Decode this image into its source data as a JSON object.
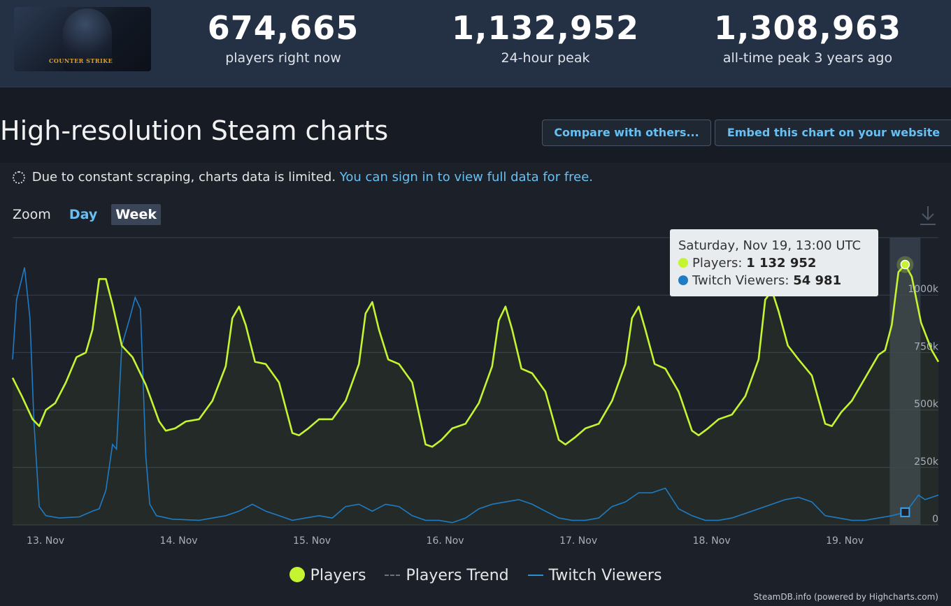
{
  "header": {
    "game_logo_text": "COUNTER STRIKE",
    "stats": [
      {
        "value": "674,665",
        "label": "players right now"
      },
      {
        "value": "1,132,952",
        "label": "24-hour peak"
      },
      {
        "value": "1,308,963",
        "label": "all-time peak 3 years ago"
      }
    ]
  },
  "section": {
    "title": "High-resolution Steam charts",
    "compare_button": "Compare with others...",
    "embed_button": "Embed this chart on your website",
    "notice_text": "Due to constant scraping, charts data is limited.",
    "notice_link": "You can sign in to view full data for free."
  },
  "zoom": {
    "label": "Zoom",
    "options": [
      "Day",
      "Week"
    ],
    "active": "Week"
  },
  "tooltip": {
    "date": "Saturday, Nov 19, 13:00 UTC",
    "players_label": "Players:",
    "players_value": "1 132 952",
    "twitch_label": "Twitch Viewers:",
    "twitch_value": "54 981"
  },
  "legend": {
    "players": "Players",
    "trend": "Players Trend",
    "twitch": "Twitch Viewers"
  },
  "credit": "SteamDB.info (powered by Highcharts.com)",
  "colors": {
    "players": "#c5f530",
    "twitch": "#2a8ed0",
    "accent_link": "#66c0f4"
  },
  "chart_data": {
    "type": "line",
    "x_tick_labels": [
      "13. Nov",
      "14. Nov",
      "15. Nov",
      "16. Nov",
      "17. Nov",
      "18. Nov",
      "19. Nov"
    ],
    "y_tick_labels": [
      "0",
      "250k",
      "500k",
      "750k",
      "1000k"
    ],
    "ylim": [
      0,
      1250000
    ],
    "grid": true,
    "x_range_days": [
      12.9,
      19.85
    ],
    "series": [
      {
        "name": "Players",
        "points": [
          [
            12.9,
            640000
          ],
          [
            12.97,
            560000
          ],
          [
            13.05,
            460000
          ],
          [
            13.1,
            430000
          ],
          [
            13.15,
            500000
          ],
          [
            13.22,
            530000
          ],
          [
            13.3,
            620000
          ],
          [
            13.38,
            730000
          ],
          [
            13.45,
            750000
          ],
          [
            13.5,
            850000
          ],
          [
            13.55,
            1070000
          ],
          [
            13.6,
            1070000
          ],
          [
            13.65,
            960000
          ],
          [
            13.72,
            780000
          ],
          [
            13.8,
            730000
          ],
          [
            13.9,
            610000
          ],
          [
            14.0,
            450000
          ],
          [
            14.05,
            410000
          ],
          [
            14.12,
            420000
          ],
          [
            14.2,
            450000
          ],
          [
            14.3,
            460000
          ],
          [
            14.4,
            540000
          ],
          [
            14.5,
            690000
          ],
          [
            14.55,
            900000
          ],
          [
            14.6,
            950000
          ],
          [
            14.65,
            870000
          ],
          [
            14.72,
            710000
          ],
          [
            14.8,
            700000
          ],
          [
            14.9,
            620000
          ],
          [
            15.0,
            400000
          ],
          [
            15.05,
            390000
          ],
          [
            15.12,
            420000
          ],
          [
            15.2,
            460000
          ],
          [
            15.3,
            460000
          ],
          [
            15.4,
            540000
          ],
          [
            15.5,
            700000
          ],
          [
            15.55,
            920000
          ],
          [
            15.6,
            970000
          ],
          [
            15.65,
            850000
          ],
          [
            15.72,
            720000
          ],
          [
            15.8,
            700000
          ],
          [
            15.9,
            620000
          ],
          [
            16.0,
            350000
          ],
          [
            16.05,
            340000
          ],
          [
            16.12,
            370000
          ],
          [
            16.2,
            420000
          ],
          [
            16.3,
            440000
          ],
          [
            16.4,
            530000
          ],
          [
            16.5,
            690000
          ],
          [
            16.55,
            890000
          ],
          [
            16.6,
            950000
          ],
          [
            16.65,
            850000
          ],
          [
            16.72,
            680000
          ],
          [
            16.8,
            660000
          ],
          [
            16.9,
            580000
          ],
          [
            17.0,
            370000
          ],
          [
            17.05,
            350000
          ],
          [
            17.12,
            380000
          ],
          [
            17.2,
            420000
          ],
          [
            17.3,
            440000
          ],
          [
            17.4,
            540000
          ],
          [
            17.5,
            700000
          ],
          [
            17.55,
            900000
          ],
          [
            17.6,
            950000
          ],
          [
            17.65,
            850000
          ],
          [
            17.72,
            700000
          ],
          [
            17.8,
            680000
          ],
          [
            17.9,
            580000
          ],
          [
            18.0,
            410000
          ],
          [
            18.05,
            390000
          ],
          [
            18.12,
            420000
          ],
          [
            18.2,
            460000
          ],
          [
            18.3,
            480000
          ],
          [
            18.4,
            560000
          ],
          [
            18.5,
            720000
          ],
          [
            18.55,
            980000
          ],
          [
            18.6,
            1020000
          ],
          [
            18.65,
            930000
          ],
          [
            18.72,
            780000
          ],
          [
            18.8,
            720000
          ],
          [
            18.9,
            650000
          ],
          [
            19.0,
            440000
          ],
          [
            19.05,
            430000
          ],
          [
            19.12,
            490000
          ],
          [
            19.2,
            540000
          ],
          [
            19.3,
            640000
          ],
          [
            19.4,
            740000
          ],
          [
            19.45,
            760000
          ],
          [
            19.5,
            870000
          ],
          [
            19.55,
            1100000
          ],
          [
            19.6,
            1132952
          ],
          [
            19.65,
            1080000
          ],
          [
            19.72,
            880000
          ],
          [
            19.8,
            760000
          ],
          [
            19.85,
            710000
          ]
        ]
      },
      {
        "name": "Twitch Viewers",
        "points": [
          [
            12.9,
            720000
          ],
          [
            12.93,
            980000
          ],
          [
            12.99,
            1120000
          ],
          [
            13.03,
            900000
          ],
          [
            13.06,
            450000
          ],
          [
            13.1,
            80000
          ],
          [
            13.15,
            40000
          ],
          [
            13.25,
            30000
          ],
          [
            13.4,
            35000
          ],
          [
            13.5,
            60000
          ],
          [
            13.55,
            70000
          ],
          [
            13.6,
            150000
          ],
          [
            13.65,
            350000
          ],
          [
            13.68,
            330000
          ],
          [
            13.72,
            780000
          ],
          [
            13.78,
            900000
          ],
          [
            13.82,
            990000
          ],
          [
            13.86,
            940000
          ],
          [
            13.9,
            300000
          ],
          [
            13.93,
            90000
          ],
          [
            13.98,
            40000
          ],
          [
            14.1,
            25000
          ],
          [
            14.3,
            20000
          ],
          [
            14.5,
            40000
          ],
          [
            14.6,
            60000
          ],
          [
            14.7,
            90000
          ],
          [
            14.8,
            60000
          ],
          [
            14.9,
            40000
          ],
          [
            15.0,
            20000
          ],
          [
            15.1,
            30000
          ],
          [
            15.2,
            40000
          ],
          [
            15.3,
            30000
          ],
          [
            15.4,
            80000
          ],
          [
            15.5,
            90000
          ],
          [
            15.6,
            60000
          ],
          [
            15.7,
            90000
          ],
          [
            15.8,
            80000
          ],
          [
            15.9,
            40000
          ],
          [
            16.0,
            20000
          ],
          [
            16.1,
            20000
          ],
          [
            16.2,
            10000
          ],
          [
            16.3,
            30000
          ],
          [
            16.4,
            70000
          ],
          [
            16.5,
            90000
          ],
          [
            16.6,
            100000
          ],
          [
            16.7,
            110000
          ],
          [
            16.8,
            90000
          ],
          [
            16.9,
            60000
          ],
          [
            17.0,
            30000
          ],
          [
            17.1,
            20000
          ],
          [
            17.2,
            20000
          ],
          [
            17.3,
            30000
          ],
          [
            17.4,
            80000
          ],
          [
            17.5,
            100000
          ],
          [
            17.6,
            140000
          ],
          [
            17.7,
            140000
          ],
          [
            17.8,
            160000
          ],
          [
            17.9,
            70000
          ],
          [
            18.0,
            40000
          ],
          [
            18.1,
            20000
          ],
          [
            18.2,
            20000
          ],
          [
            18.3,
            30000
          ],
          [
            18.4,
            50000
          ],
          [
            18.5,
            70000
          ],
          [
            18.6,
            90000
          ],
          [
            18.7,
            110000
          ],
          [
            18.8,
            120000
          ],
          [
            18.9,
            100000
          ],
          [
            19.0,
            40000
          ],
          [
            19.1,
            30000
          ],
          [
            19.2,
            20000
          ],
          [
            19.3,
            20000
          ],
          [
            19.4,
            30000
          ],
          [
            19.5,
            40000
          ],
          [
            19.6,
            54981
          ],
          [
            19.65,
            90000
          ],
          [
            19.7,
            130000
          ],
          [
            19.75,
            110000
          ],
          [
            19.8,
            120000
          ],
          [
            19.85,
            130000
          ]
        ]
      }
    ],
    "highlight": {
      "x": 19.6,
      "players": 1132952,
      "twitch": 54981
    }
  }
}
